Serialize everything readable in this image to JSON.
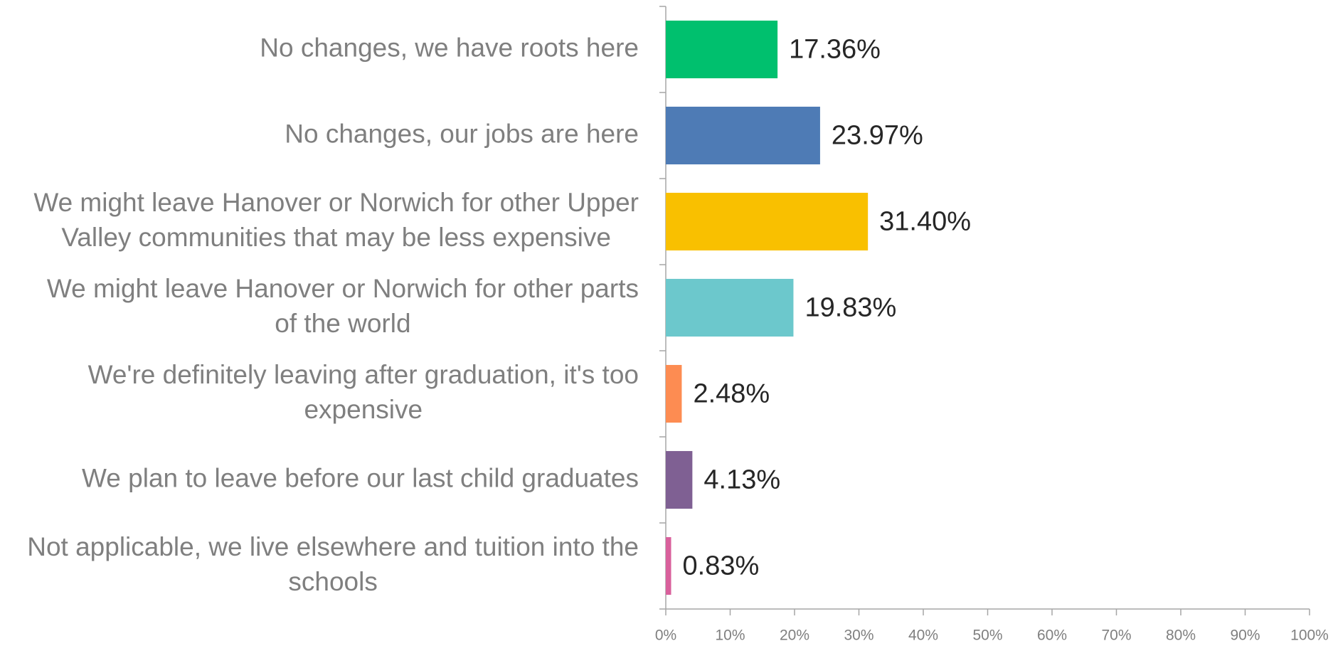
{
  "chart_data": {
    "type": "bar",
    "orientation": "horizontal",
    "categories": [
      [
        "No changes, we have roots here"
      ],
      [
        "No changes, our jobs are here"
      ],
      [
        "We might leave Hanover or Norwich for other Upper",
        "Valley communities that may be less expensive"
      ],
      [
        "We might leave Hanover or Norwich for other parts",
        "of the world"
      ],
      [
        "We're definitely leaving after graduation, it's too",
        "expensive"
      ],
      [
        "We plan to leave before our last child graduates"
      ],
      [
        "Not applicable, we live elsewhere and tuition into the",
        "schools"
      ]
    ],
    "values": [
      17.36,
      23.97,
      31.4,
      19.83,
      2.48,
      4.13,
      0.83
    ],
    "value_labels": [
      "17.36%",
      "23.97%",
      "31.40%",
      "19.83%",
      "2.48%",
      "4.13%",
      "0.83%"
    ],
    "colors": [
      "#00c06e",
      "#4e7bb5",
      "#f9c000",
      "#6cc8cc",
      "#fd8c52",
      "#7f6093",
      "#d9609c"
    ],
    "xlim": [
      0,
      100
    ],
    "xticks": [
      {
        "value": 0,
        "label": "0%"
      },
      {
        "value": 10,
        "label": "10%"
      },
      {
        "value": 20,
        "label": "20%"
      },
      {
        "value": 30,
        "label": "30%"
      },
      {
        "value": 40,
        "label": "40%"
      },
      {
        "value": 50,
        "label": "50%"
      },
      {
        "value": 60,
        "label": "60%"
      },
      {
        "value": 70,
        "label": "70%"
      },
      {
        "value": 80,
        "label": "80%"
      },
      {
        "value": 90,
        "label": "90%"
      },
      {
        "value": 100,
        "label": "100%"
      }
    ],
    "grid": false
  }
}
